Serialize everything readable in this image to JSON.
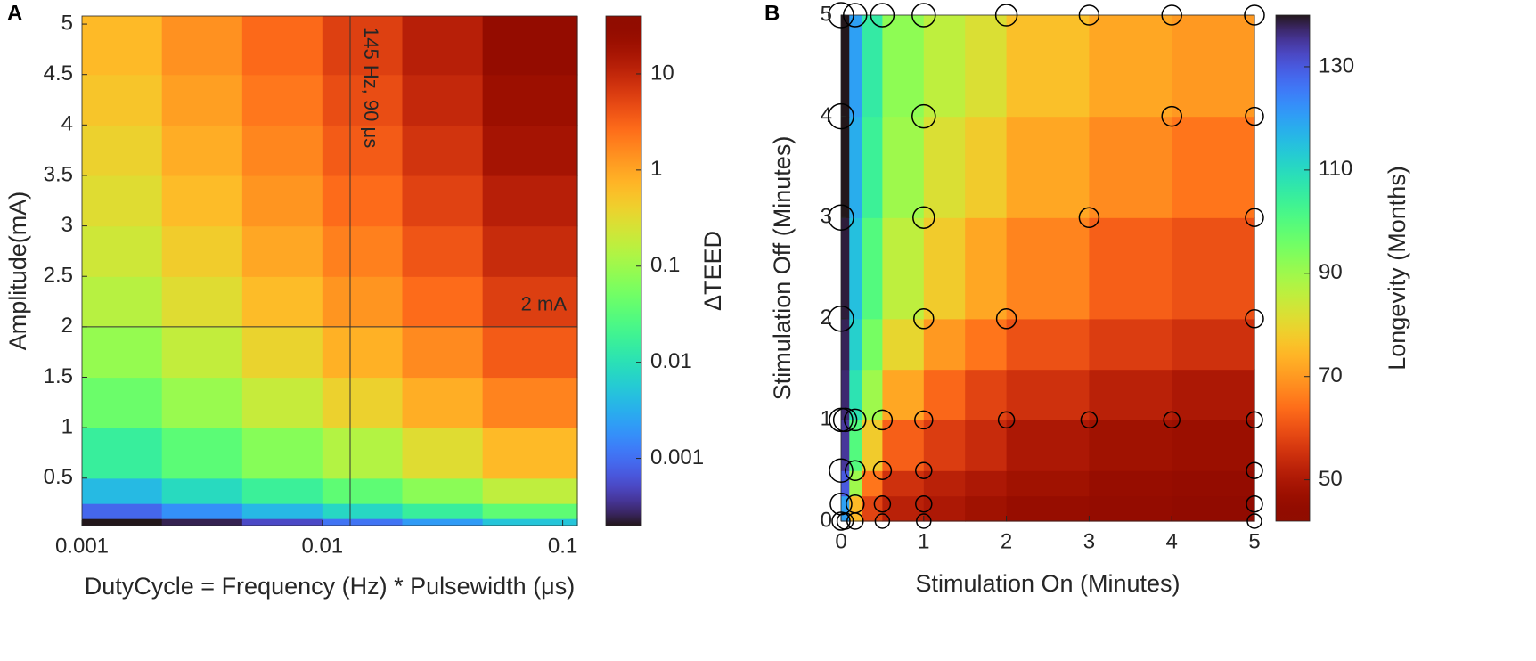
{
  "chart_data": [
    {
      "type": "heatmap",
      "panel_label": "A",
      "x_label": "DutyCycle = Frequency (Hz) * Pulsewidth (μs)",
      "y_label": "Amplitude(mA)",
      "xscale": "log",
      "xlim": [
        0.001,
        0.115
      ],
      "xticks": [
        0.001,
        0.01,
        0.1
      ],
      "ylim": [
        0.03,
        5.08
      ],
      "yticks": [
        0.5,
        1,
        1.5,
        2,
        2.5,
        3,
        3.5,
        4,
        4.5,
        5
      ],
      "x_edges": [
        0.001,
        0.00215,
        0.00464,
        0.01,
        0.0215,
        0.0464,
        0.115
      ],
      "y_edges": [
        0.03,
        0.1,
        0.25,
        0.5,
        1,
        1.5,
        2,
        2.5,
        3,
        3.5,
        4,
        4.5,
        5.08
      ],
      "values": [
        [
          0.00012,
          0.00025,
          0.00052,
          0.0011,
          0.0022,
          0.005
        ],
        [
          0.00088,
          0.0018,
          0.0038,
          0.0078,
          0.016,
          0.036
        ],
        [
          0.004,
          0.0084,
          0.017,
          0.036,
          0.075,
          0.17
        ],
        [
          0.016,
          0.034,
          0.07,
          0.14,
          0.3,
          0.66
        ],
        [
          0.045,
          0.093,
          0.19,
          0.4,
          0.83,
          1.8
        ],
        [
          0.088,
          0.18,
          0.38,
          0.78,
          1.6,
          3.6
        ],
        [
          0.15,
          0.3,
          0.63,
          1.3,
          2.7,
          6
        ],
        [
          0.22,
          0.45,
          0.94,
          1.9,
          4,
          8.9
        ],
        [
          0.3,
          0.63,
          1.3,
          2.7,
          5.6,
          12
        ],
        [
          0.4,
          0.84,
          1.7,
          3.6,
          7.5,
          17
        ],
        [
          0.52,
          1.1,
          2.2,
          4.6,
          9.6,
          21
        ],
        [
          0.66,
          1.4,
          2.8,
          5.9,
          12,
          27
        ]
      ],
      "colormap": "turbo",
      "colormap_reversed": false,
      "color_scale": "log",
      "clim": [
        0.0002,
        40
      ],
      "cticks": [
        0.001,
        0.01,
        0.1,
        1,
        10
      ],
      "colorbar_label": "ΔTEED",
      "vline": {
        "value": 0.01305,
        "label": "145 Hz, 90 μs"
      },
      "hline": {
        "value": 2,
        "label": "2 mA"
      }
    },
    {
      "type": "heatmap",
      "panel_label": "B",
      "x_label": "Stimulation On (Minutes)",
      "y_label": "Stimulation Off (Minutes)",
      "xscale": "linear",
      "xlim": [
        0,
        5
      ],
      "xticks": [
        0,
        1,
        2,
        3,
        4,
        5
      ],
      "ylim": [
        0,
        5
      ],
      "yticks": [
        0,
        1,
        2,
        3,
        4,
        5
      ],
      "x_edges": [
        0,
        0.1,
        0.25,
        0.5,
        1,
        1.5,
        2,
        3,
        4,
        5
      ],
      "y_edges": [
        0,
        0.25,
        0.5,
        1,
        1.5,
        2,
        3,
        4,
        5
      ],
      "values": [
        [
          120,
          75,
          58,
          52,
          50,
          48,
          46,
          45,
          44
        ],
        [
          130,
          90,
          65,
          55,
          52,
          50,
          48,
          46,
          45
        ],
        [
          135,
          100,
          78,
          62,
          57,
          54,
          50,
          48,
          47
        ],
        [
          137,
          108,
          90,
          72,
          63,
          58,
          55,
          52,
          50
        ],
        [
          138,
          112,
          95,
          80,
          70,
          65,
          60,
          57,
          55
        ],
        [
          139,
          115,
          100,
          86,
          78,
          72,
          67,
          62,
          60
        ],
        [
          140,
          118,
          104,
          90,
          82,
          78,
          72,
          68,
          65
        ],
        [
          140,
          120,
          106,
          92,
          86,
          82,
          76,
          72,
          70
        ]
      ],
      "colormap": "turbo",
      "colormap_reversed": true,
      "color_scale": "linear",
      "clim": [
        42,
        140
      ],
      "cticks": [
        50,
        70,
        90,
        110,
        130
      ],
      "colorbar_label": "Longevity (Months)",
      "scatter": {
        "x": [
          0,
          0.17,
          0.5,
          1,
          2,
          3,
          4,
          5,
          0,
          1,
          4,
          5,
          0,
          1,
          3,
          5,
          0,
          1,
          2,
          5,
          0,
          0.05,
          0.17,
          0.5,
          1,
          2,
          3,
          4,
          5,
          0,
          0.17,
          0.5,
          1,
          5,
          0,
          0.17,
          0.5,
          1,
          5,
          0,
          0.05,
          0.17,
          0.5,
          1,
          5
        ],
        "y": [
          5,
          5,
          5,
          5,
          5,
          5,
          5,
          5,
          4,
          4,
          4,
          4,
          3,
          3,
          3,
          3,
          2,
          2,
          2,
          2,
          1,
          1,
          1,
          1,
          1,
          1,
          1,
          1,
          1,
          0.5,
          0.5,
          0.5,
          0.5,
          0.5,
          0.17,
          0.17,
          0.17,
          0.17,
          0.17,
          0,
          0,
          0,
          0,
          0,
          0
        ],
        "sizes": [
          14,
          13,
          13,
          13,
          12,
          11,
          11,
          11,
          14,
          13,
          11,
          10,
          14,
          12,
          11,
          10,
          14,
          11,
          11,
          10,
          13,
          13,
          12,
          11,
          10,
          9,
          9,
          9,
          9,
          13,
          11,
          10,
          9,
          9,
          12,
          10,
          9,
          9,
          9,
          10,
          9,
          9,
          8,
          8,
          8
        ]
      }
    }
  ]
}
